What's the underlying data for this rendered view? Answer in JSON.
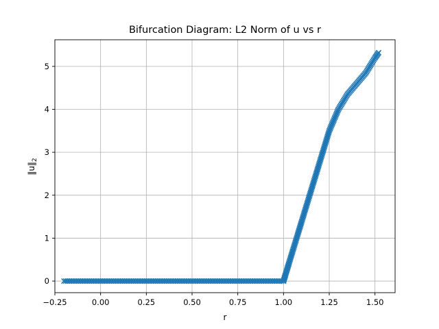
{
  "chart_data": {
    "type": "scatter",
    "title": "Bifurcation Diagram: L2 Norm of u vs r",
    "xlabel": "r",
    "ylabel_main": "‖u‖",
    "ylabel_sub": "2",
    "xlim": [
      -0.25,
      1.61
    ],
    "ylim": [
      -0.27,
      5.62
    ],
    "xticks": [
      -0.25,
      0.0,
      0.25,
      0.5,
      0.75,
      1.0,
      1.25,
      1.5
    ],
    "xtick_labels": [
      "−0.25",
      "0.00",
      "0.25",
      "0.50",
      "0.75",
      "1.00",
      "1.25",
      "1.50"
    ],
    "yticks": [
      0,
      1,
      2,
      3,
      4,
      5
    ],
    "ytick_labels": [
      "0",
      "1",
      "2",
      "3",
      "4",
      "5"
    ],
    "grid": true,
    "marker": "x",
    "color": "#1f77b4",
    "series": [
      {
        "branch_trivial": {
          "r_start": -0.2,
          "r_end": 1.0,
          "step": 0.01,
          "value": 0.0
        },
        "branch_nontrivial": {
          "points": [
            [
              1.0,
              0.0
            ],
            [
              1.005,
              0.07
            ],
            [
              1.01,
              0.14
            ],
            [
              1.02,
              0.28
            ],
            [
              1.03,
              0.42
            ],
            [
              1.05,
              0.7
            ],
            [
              1.08,
              1.12
            ],
            [
              1.1,
              1.4
            ],
            [
              1.15,
              2.1
            ],
            [
              1.2,
              2.8
            ],
            [
              1.25,
              3.5
            ],
            [
              1.3,
              4.0
            ],
            [
              1.35,
              4.35
            ],
            [
              1.4,
              4.6
            ],
            [
              1.45,
              4.85
            ],
            [
              1.5,
              5.2
            ],
            [
              1.52,
              5.32
            ]
          ]
        }
      }
    ]
  }
}
